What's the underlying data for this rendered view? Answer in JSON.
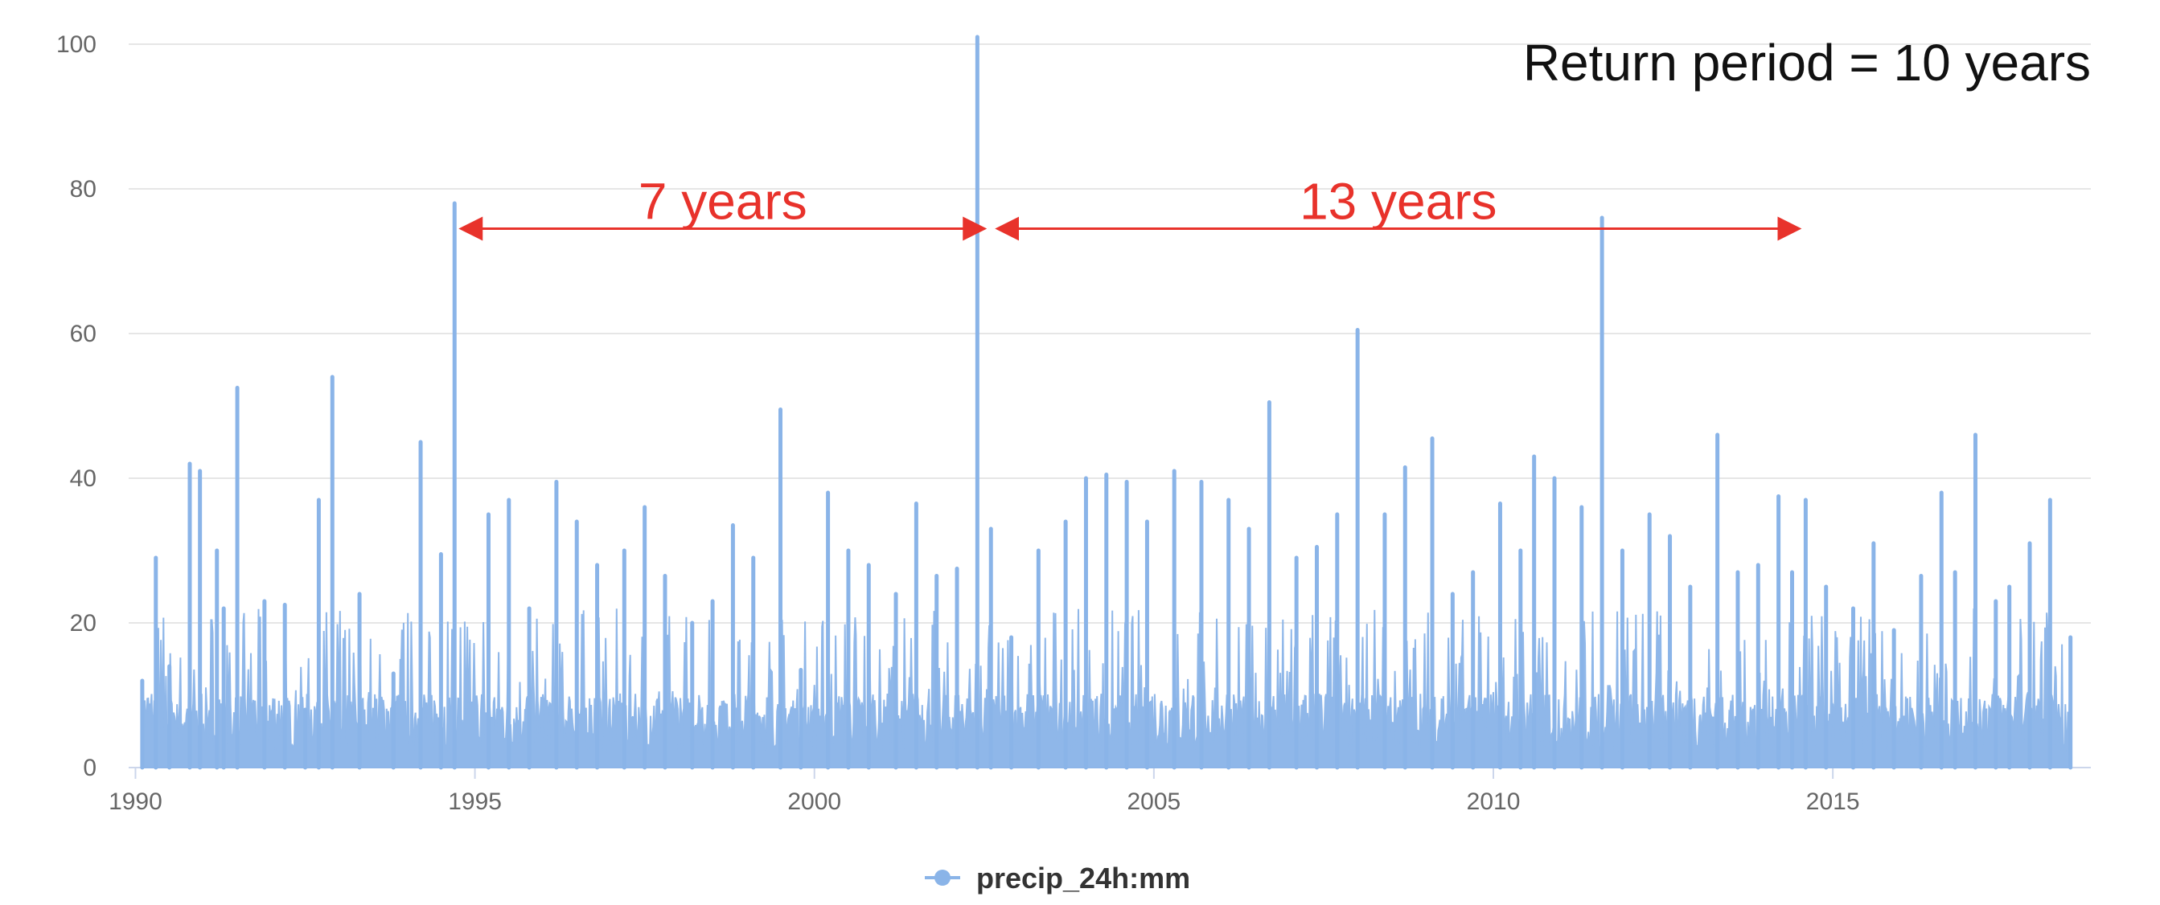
{
  "chart_data": {
    "type": "line",
    "title": "",
    "xlabel": "",
    "ylabel": "",
    "xlim": [
      1989.9,
      2018.8
    ],
    "ylim": [
      0,
      100
    ],
    "x_ticks": [
      "1990",
      "1995",
      "2000",
      "2005",
      "2010",
      "2015"
    ],
    "y_ticks": [
      "0",
      "20",
      "40",
      "60",
      "80",
      "100"
    ],
    "grid": true,
    "legend_position": "bottom-center",
    "series": [
      {
        "name": "precip_24h:mm",
        "color": "#8ab4e8",
        "x": [
          1990.1,
          1990.3,
          1990.5,
          1990.8,
          1990.95,
          1991.2,
          1991.3,
          1991.5,
          1991.9,
          1992.2,
          1992.5,
          1992.7,
          1992.9,
          1993.3,
          1993.8,
          1994.2,
          1994.5,
          1994.7,
          1995.2,
          1995.5,
          1995.8,
          1996.2,
          1996.5,
          1996.8,
          1997.2,
          1997.5,
          1997.8,
          1998.2,
          1998.5,
          1998.8,
          1999.1,
          1999.5,
          1999.8,
          2000.2,
          2000.5,
          2000.8,
          2001.2,
          2001.5,
          2001.8,
          2002.1,
          2002.4,
          2002.6,
          2002.9,
          2003.3,
          2003.7,
          2004.0,
          2004.3,
          2004.6,
          2004.9,
          2005.3,
          2005.7,
          2006.1,
          2006.4,
          2006.7,
          2007.1,
          2007.4,
          2007.7,
          2008.0,
          2008.4,
          2008.7,
          2009.1,
          2009.4,
          2009.7,
          2010.1,
          2010.4,
          2010.6,
          2010.9,
          2011.3,
          2011.6,
          2011.9,
          2012.3,
          2012.6,
          2012.9,
          2013.3,
          2013.6,
          2013.9,
          2014.2,
          2014.4,
          2014.6,
          2014.9,
          2015.3,
          2015.6,
          2015.9,
          2016.3,
          2016.6,
          2016.8,
          2017.1,
          2017.4,
          2017.6,
          2017.9,
          2018.2,
          2018.5
        ],
        "y": [
          12,
          29,
          14,
          42,
          41,
          30,
          22,
          52.5,
          23,
          22.5,
          8,
          37,
          54,
          24,
          13,
          45,
          29.5,
          78,
          35,
          37,
          22,
          39.5,
          34,
          28,
          30,
          36,
          26.5,
          20,
          23,
          33.5,
          29,
          49.5,
          13.5,
          38,
          30,
          28,
          24,
          36.5,
          26.5,
          27.5,
          101,
          33,
          18,
          30,
          34,
          40,
          40.5,
          39.5,
          34,
          41,
          39.5,
          37,
          33,
          50.5,
          29,
          30.5,
          35,
          60.5,
          35,
          41.5,
          45.5,
          24,
          27,
          36.5,
          30,
          43,
          40,
          36,
          76,
          30,
          35,
          32,
          25,
          46,
          27,
          28,
          37.5,
          27,
          37,
          25,
          22,
          31,
          19,
          26.5,
          38,
          27,
          46,
          23,
          25,
          31,
          37,
          18
        ]
      }
    ],
    "annotations": [
      {
        "text": "7 years",
        "x_start": 1994.7,
        "x_end": 2002.6,
        "y": 74.5,
        "color": "#e8322b"
      },
      {
        "text": "13 years",
        "x_start": 2002.6,
        "x_end": 2014.6,
        "y": 74.5,
        "color": "#e8322b"
      },
      {
        "text": "Return period = 10 years",
        "color": "#111111"
      }
    ]
  }
}
